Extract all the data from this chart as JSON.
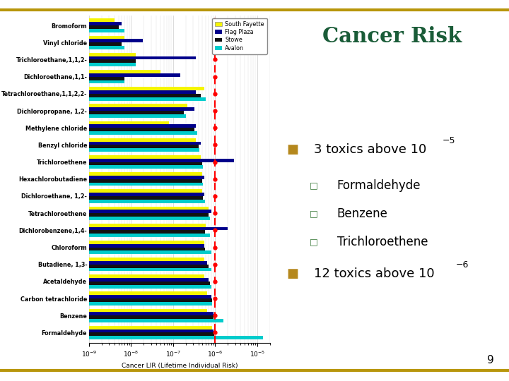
{
  "title": "Cancer Risk",
  "title_color": "#1a5c38",
  "background_color": "#ffffff",
  "border_color": "#b8960c",
  "page_number": "9",
  "bullet_color": "#b5881d",
  "categories": [
    "Bromoform",
    "Vinyl chloride",
    "Trichloroethane,1,1,2-",
    "Dichloroethane,1,1-",
    "Tetrachloroethane,1,1,2,2-",
    "Dichloropropane, 1,2-",
    "Methylene chloride",
    "Benzyl chloride",
    "Trichloroethene",
    "Hexachlorobutadiene",
    "Dichloroethane, 1,2-",
    "Tetrachloroethene",
    "Dichlorobenzene,1,4-",
    "Chloroform",
    "Butadiene, 1,3-",
    "Acetaldehyde",
    "Carbon tetrachloride",
    "Benzene",
    "Formaldehyde"
  ],
  "south_fayette": [
    3e-09,
    6e-09,
    1.2e-08,
    5e-08,
    5.5e-07,
    2.2e-07,
    8e-08,
    3.5e-07,
    4.5e-07,
    5e-07,
    5e-07,
    7e-07,
    6e-07,
    5.5e-07,
    5.5e-07,
    5.5e-07,
    6.5e-07,
    6.5e-07,
    8.5e-07
  ],
  "flag_plaza": [
    5e-09,
    1.8e-08,
    3.5e-07,
    1.5e-07,
    3.5e-07,
    3.2e-07,
    3.5e-07,
    4.5e-07,
    2.8e-06,
    5.5e-07,
    5.5e-07,
    8e-07,
    2e-06,
    5.5e-07,
    6.5e-07,
    7e-07,
    8e-07,
    9e-07,
    9e-07
  ],
  "stowe": [
    4e-09,
    5e-09,
    1.2e-08,
    6e-09,
    4.5e-07,
    1.8e-07,
    3.2e-07,
    4e-07,
    5e-07,
    5e-07,
    5.2e-07,
    7e-07,
    5.8e-07,
    5.8e-07,
    7e-07,
    7.5e-07,
    8.5e-07,
    9e-07,
    9.5e-07
  ],
  "avalon": [
    6e-09,
    6e-09,
    1.2e-08,
    6e-09,
    6e-07,
    2e-07,
    3.8e-07,
    4.2e-07,
    5.2e-07,
    5.2e-07,
    5.8e-07,
    7.5e-07,
    7.5e-07,
    8e-07,
    8e-07,
    8e-07,
    8.5e-07,
    1.6e-06,
    1.4e-05
  ],
  "colors": {
    "south_fayette": "#f5f500",
    "flag_plaza": "#00008b",
    "stowe": "#111111",
    "avalon": "#00cccc"
  },
  "ref_line": 1e-06,
  "xlim_min": 1e-09,
  "xlim_max": 2e-05,
  "xlabel": "Cancer LIR (Lifetime Individual Risk)",
  "sub_bullets": [
    "Formaldehyde",
    "Benzene",
    "Trichloroethene"
  ]
}
